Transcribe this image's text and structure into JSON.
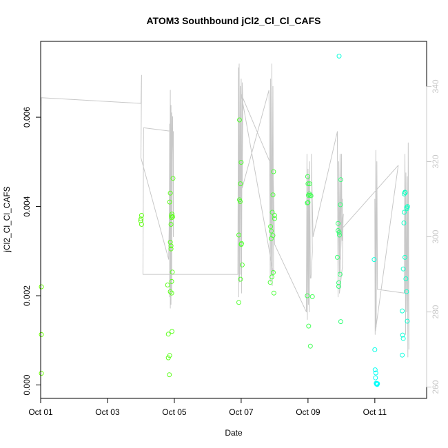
{
  "chart_data": {
    "type": "scatter",
    "title": "ATOM3 Southbound jCl2_Cl_Cl_CAFS",
    "xlabel": "Date",
    "ylabel": "jCl2_Cl_Cl_CAFS",
    "xlim": [
      0.0,
      11.55
    ],
    "ylim": [
      -0.0003,
      0.0077
    ],
    "y2lim": [
      257.0,
      352.0
    ],
    "x_ticks": [
      {
        "value": 0,
        "label": "Oct 01"
      },
      {
        "value": 2,
        "label": "Oct 03"
      },
      {
        "value": 4,
        "label": "Oct 05"
      },
      {
        "value": 6,
        "label": "Oct 07"
      },
      {
        "value": 8,
        "label": "Oct 09"
      },
      {
        "value": 10,
        "label": "Oct 11"
      }
    ],
    "y_ticks": [
      {
        "value": 0.0,
        "label": "0.000"
      },
      {
        "value": 0.002,
        "label": "0.002"
      },
      {
        "value": 0.004,
        "label": "0.004"
      },
      {
        "value": 0.006,
        "label": "0.006"
      }
    ],
    "y2_ticks": [
      {
        "value": 260,
        "label": "260"
      },
      {
        "value": 280,
        "label": "280"
      },
      {
        "value": 300,
        "label": "300"
      },
      {
        "value": 320,
        "label": "320"
      },
      {
        "value": 340,
        "label": "340"
      }
    ],
    "series": [
      {
        "name": "jCl2_Cl_Cl_CAFS",
        "marker": "open-circle",
        "color_scale": [
          "#66ff00",
          "#00ffff"
        ],
        "points": [
          [
            0.02,
            0.0022,
            0.0
          ],
          [
            0.02,
            0.00113,
            0.0
          ],
          [
            0.02,
            0.00026,
            0.0
          ],
          [
            3.02,
            0.0038,
            0.07
          ],
          [
            3.0,
            0.00372,
            0.07
          ],
          [
            2.99,
            0.00368,
            0.07
          ],
          [
            3.02,
            0.0036,
            0.07
          ],
          [
            3.8,
            0.00224,
            0.1
          ],
          [
            3.82,
            0.00114,
            0.1
          ],
          [
            3.82,
            0.00061,
            0.1
          ],
          [
            3.85,
            0.00023,
            0.1
          ],
          [
            3.86,
            0.00066,
            0.1
          ],
          [
            3.86,
            0.0041,
            0.1
          ],
          [
            3.88,
            0.0043,
            0.1
          ],
          [
            3.88,
            0.0032,
            0.1
          ],
          [
            3.88,
            0.00209,
            0.1
          ],
          [
            3.9,
            0.0036,
            0.11
          ],
          [
            3.9,
            0.00312,
            0.11
          ],
          [
            3.9,
            0.00305,
            0.11
          ],
          [
            3.91,
            0.00379,
            0.11
          ],
          [
            3.92,
            0.00375,
            0.11
          ],
          [
            3.92,
            0.00232,
            0.11
          ],
          [
            3.92,
            0.00206,
            0.11
          ],
          [
            3.93,
            0.0012,
            0.11
          ],
          [
            3.93,
            0.00383,
            0.11
          ],
          [
            3.94,
            0.00253,
            0.11
          ],
          [
            3.96,
            0.00463,
            0.11
          ],
          [
            3.95,
            0.00377,
            0.11
          ],
          [
            5.93,
            0.00185,
            0.19
          ],
          [
            5.93,
            0.00336,
            0.19
          ],
          [
            5.95,
            0.00594,
            0.19
          ],
          [
            5.95,
            0.00415,
            0.19
          ],
          [
            5.97,
            0.00411,
            0.19
          ],
          [
            5.98,
            0.00451,
            0.19
          ],
          [
            5.98,
            0.00237,
            0.19
          ],
          [
            6.0,
            0.00499,
            0.2
          ],
          [
            6.0,
            0.00315,
            0.2
          ],
          [
            6.01,
            0.00317,
            0.2
          ],
          [
            6.03,
            0.00269,
            0.2
          ],
          [
            6.87,
            0.0023,
            0.23
          ],
          [
            6.88,
            0.00355,
            0.23
          ],
          [
            6.9,
            0.00328,
            0.23
          ],
          [
            6.9,
            0.00345,
            0.23
          ],
          [
            6.92,
            0.00242,
            0.24
          ],
          [
            6.93,
            0.00387,
            0.24
          ],
          [
            6.95,
            0.00335,
            0.24
          ],
          [
            6.95,
            0.00426,
            0.24
          ],
          [
            6.96,
            0.00252,
            0.24
          ],
          [
            6.97,
            0.00478,
            0.24
          ],
          [
            6.98,
            0.00206,
            0.24
          ],
          [
            7.0,
            0.0038,
            0.24
          ],
          [
            7.0,
            0.00373,
            0.24
          ],
          [
            7.98,
            0.002,
            0.33
          ],
          [
            7.98,
            0.00408,
            0.33
          ],
          [
            7.99,
            0.00467,
            0.33
          ],
          [
            8.0,
            0.00451,
            0.33
          ],
          [
            8.0,
            0.00409,
            0.33
          ],
          [
            8.01,
            0.00425,
            0.33
          ],
          [
            8.02,
            0.00132,
            0.33
          ],
          [
            8.04,
            0.00428,
            0.33
          ],
          [
            8.05,
            0.00451,
            0.33
          ],
          [
            8.06,
            0.00425,
            0.33
          ],
          [
            8.07,
            0.00087,
            0.34
          ],
          [
            8.09,
            0.00424,
            0.34
          ],
          [
            8.13,
            0.00198,
            0.34
          ],
          [
            8.88,
            0.00286,
            0.45
          ],
          [
            8.9,
            0.00362,
            0.46
          ],
          [
            8.9,
            0.00346,
            0.46
          ],
          [
            8.92,
            0.00221,
            0.46
          ],
          [
            8.92,
            0.00229,
            0.46
          ],
          [
            8.93,
            0.00342,
            0.46
          ],
          [
            8.94,
            0.00336,
            0.46
          ],
          [
            8.96,
            0.00248,
            0.47
          ],
          [
            8.97,
            0.00404,
            0.47
          ],
          [
            8.98,
            0.00142,
            0.47
          ],
          [
            8.98,
            0.0046,
            0.47
          ],
          [
            8.93,
            0.00737,
            0.86
          ],
          [
            9.98,
            0.00281,
            0.86
          ],
          [
            10.0,
            0.00079,
            0.9
          ],
          [
            10.01,
            0.00034,
            0.94
          ],
          [
            10.02,
            0.00016,
            0.96
          ],
          [
            10.03,
            0.00027,
            0.95
          ],
          [
            10.04,
            4e-05,
            0.97
          ],
          [
            10.05,
            2e-05,
            0.98
          ],
          [
            10.06,
            3e-05,
            0.98
          ],
          [
            10.07,
            1e-05,
            0.99
          ],
          [
            10.08,
            3e-05,
            0.98
          ],
          [
            10.82,
            0.00166,
            0.83
          ],
          [
            10.82,
            0.00067,
            0.88
          ],
          [
            10.83,
            0.00112,
            0.85
          ],
          [
            10.85,
            0.00104,
            0.85
          ],
          [
            10.85,
            0.0026,
            0.8
          ],
          [
            10.87,
            0.00363,
            0.78
          ],
          [
            10.88,
            0.00428,
            0.76
          ],
          [
            10.88,
            0.00387,
            0.77
          ],
          [
            10.9,
            0.00286,
            0.78
          ],
          [
            10.9,
            0.00432,
            0.76
          ],
          [
            10.91,
            0.00431,
            0.76
          ],
          [
            10.93,
            0.00238,
            0.79
          ],
          [
            10.95,
            0.00209,
            0.8
          ],
          [
            10.95,
            0.00398,
            0.77
          ],
          [
            10.96,
            0.00395,
            0.77
          ],
          [
            10.97,
            0.00143,
            0.82
          ],
          [
            10.98,
            0.004,
            0.77
          ]
        ]
      },
      {
        "name": "secondary axis line",
        "axis": "right",
        "color": "#c8c8c8",
        "points": [
          [
            0.0,
            276.0
          ],
          [
            0.02,
            337.0
          ],
          [
            3.0,
            335.5
          ],
          [
            3.02,
            343.0
          ],
          [
            3.0,
            321.0
          ],
          [
            3.83,
            294.0
          ],
          [
            3.85,
            306.0
          ],
          [
            3.86,
            330.0
          ],
          [
            3.86,
            284.0
          ],
          [
            3.88,
            339.0
          ],
          [
            3.88,
            281.0
          ],
          [
            3.9,
            335.0
          ],
          [
            3.9,
            282.0
          ],
          [
            3.92,
            333.0
          ],
          [
            3.92,
            286.0
          ],
          [
            3.93,
            322.0
          ],
          [
            3.95,
            332.0
          ],
          [
            3.97,
            300.0
          ],
          [
            3.97,
            328.0
          ],
          [
            3.08,
            329.0
          ],
          [
            3.06,
            290.0
          ],
          [
            5.9,
            290.0
          ],
          [
            5.92,
            345.0
          ],
          [
            5.93,
            284.0
          ],
          [
            5.94,
            346.0
          ],
          [
            5.95,
            288.0
          ],
          [
            5.97,
            340.0
          ],
          [
            5.99,
            290.0
          ],
          [
            6.0,
            342.0
          ],
          [
            6.01,
            285.0
          ],
          [
            6.03,
            341.0
          ],
          [
            6.05,
            336.0
          ],
          [
            6.03,
            313.0
          ],
          [
            6.83,
            339.0
          ],
          [
            6.85,
            326.0
          ],
          [
            6.87,
            288.0
          ],
          [
            6.88,
            342.0
          ],
          [
            6.9,
            290.0
          ],
          [
            6.92,
            346.0
          ],
          [
            6.93,
            287.0
          ],
          [
            6.95,
            340.0
          ],
          [
            6.97,
            290.0
          ],
          [
            6.0,
            338.0
          ],
          [
            6.95,
            318.0
          ],
          [
            6.97,
            312.0
          ],
          [
            7.0,
            298.0
          ],
          [
            7.95,
            280.0
          ],
          [
            7.97,
            322.0
          ],
          [
            7.98,
            278.0
          ],
          [
            8.0,
            318.0
          ],
          [
            8.01,
            282.0
          ],
          [
            8.02,
            316.0
          ],
          [
            8.04,
            280.0
          ],
          [
            8.05,
            320.0
          ],
          [
            8.07,
            289.0
          ],
          [
            8.09,
            289.0
          ],
          [
            8.13,
            296.0
          ],
          [
            8.1,
            322.0
          ],
          [
            8.15,
            300.0
          ],
          [
            8.88,
            328.0
          ],
          [
            8.9,
            284.0
          ],
          [
            8.92,
            320.0
          ],
          [
            8.94,
            290.0
          ],
          [
            8.96,
            322.0
          ],
          [
            8.98,
            294.0
          ],
          [
            9.0,
            322.0
          ],
          [
            9.02,
            299.0
          ],
          [
            9.03,
            310.0
          ],
          [
            8.94,
            285.0
          ],
          [
            9.03,
            292.0
          ],
          [
            9.05,
            305.0
          ],
          [
            9.06,
            306.0
          ],
          [
            9.0,
            302.0
          ],
          [
            10.7,
            319.0
          ],
          [
            10.02,
            275.0
          ],
          [
            10.0,
            310.0
          ],
          [
            10.01,
            274.0
          ],
          [
            10.03,
            323.0
          ],
          [
            10.04,
            276.0
          ],
          [
            10.06,
            320.0
          ],
          [
            10.08,
            286.0
          ],
          [
            10.88,
            285.0
          ],
          [
            10.9,
            322.0
          ],
          [
            10.92,
            274.0
          ],
          [
            10.93,
            317.0
          ],
          [
            10.95,
            280.0
          ],
          [
            10.97,
            316.0
          ],
          [
            10.99,
            268.0
          ],
          [
            11.0,
            325.0
          ],
          [
            11.01,
            300.0
          ],
          [
            11.01,
            304.0
          ],
          [
            11.02,
            270.0
          ]
        ]
      }
    ]
  }
}
